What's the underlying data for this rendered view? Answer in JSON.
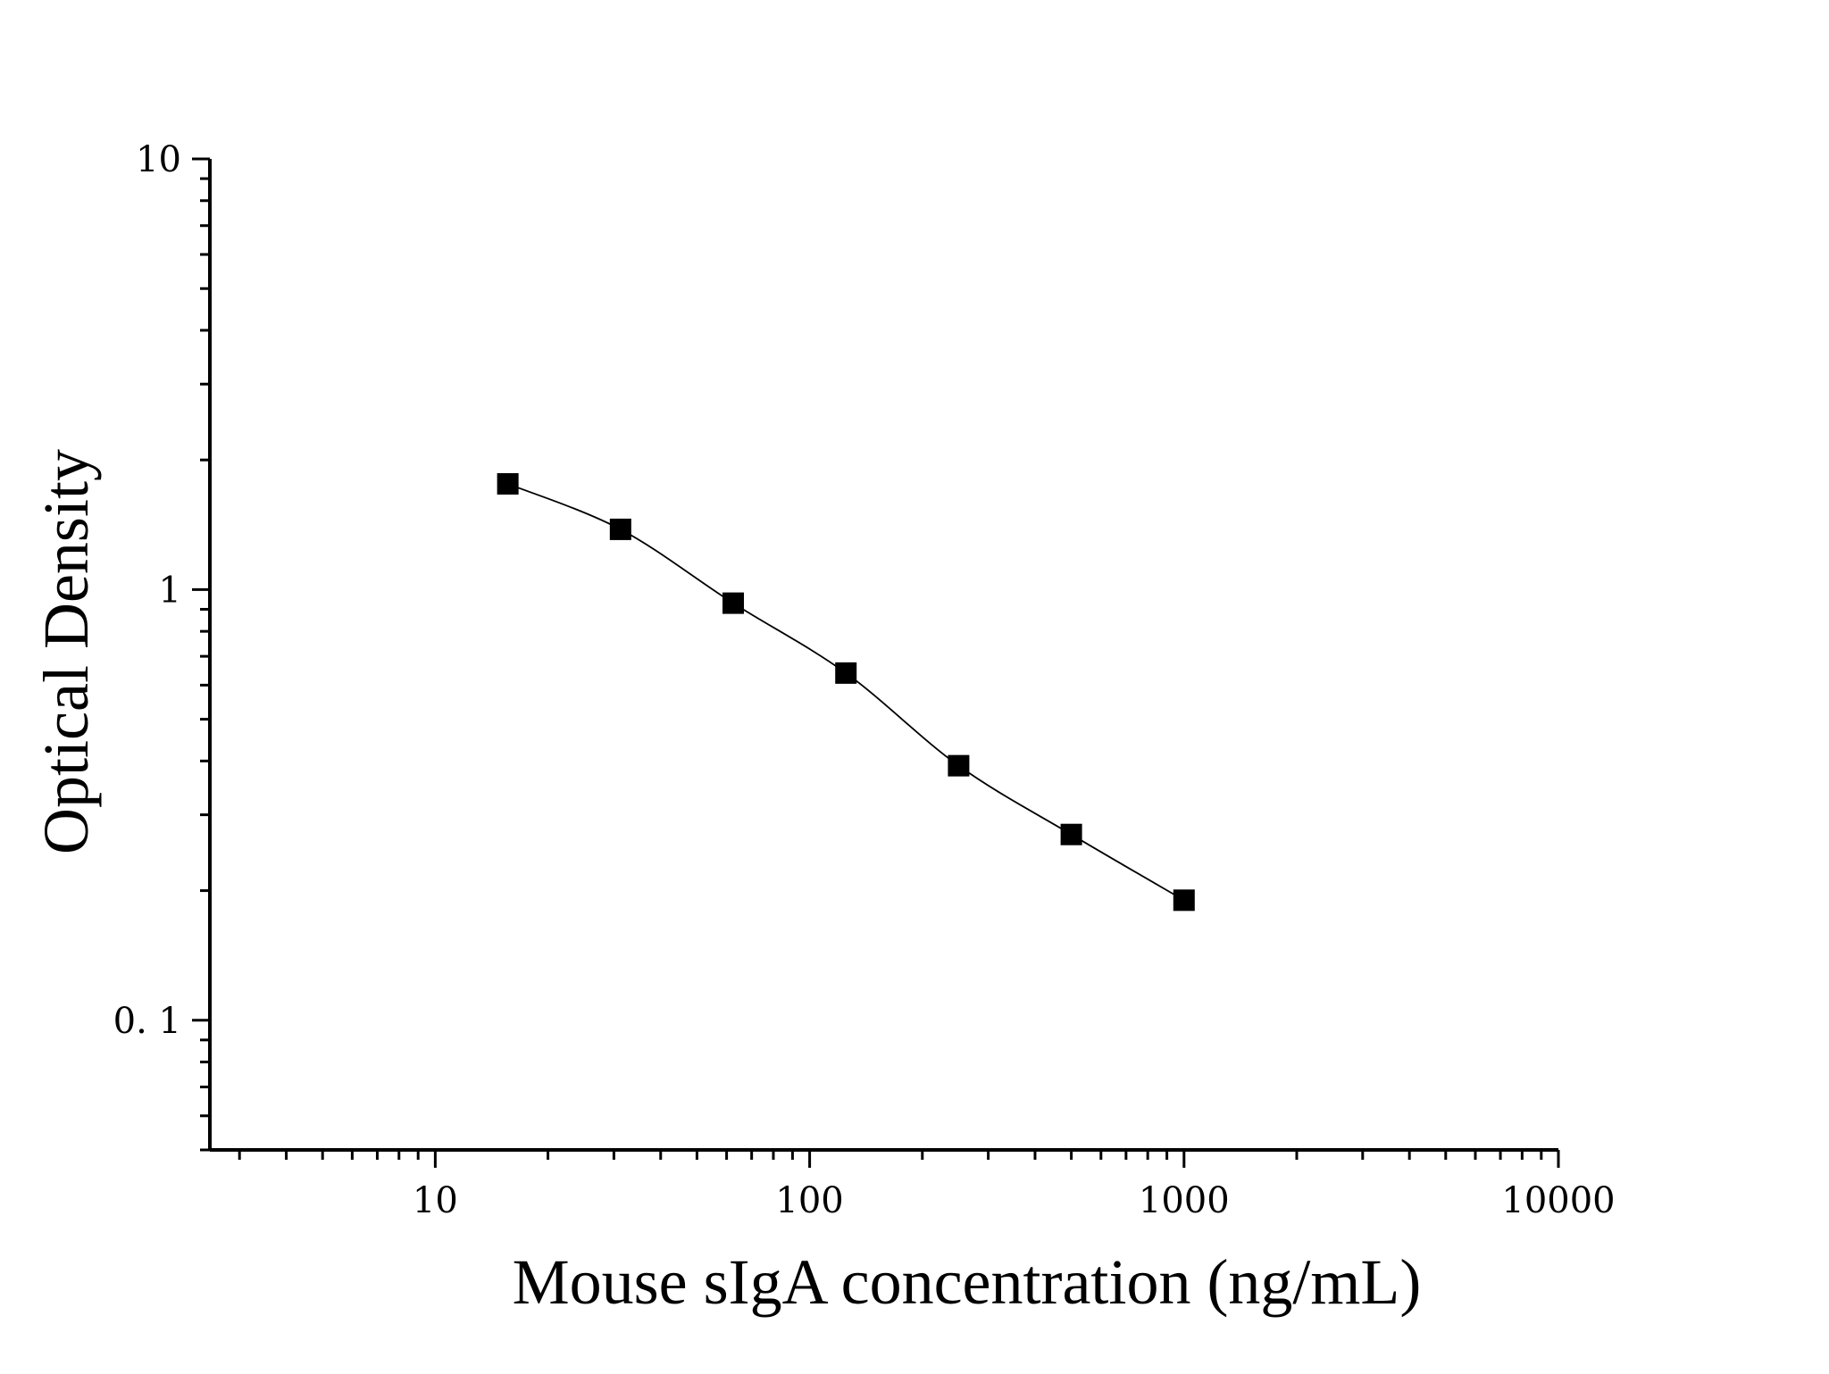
{
  "chart_data": {
    "type": "scatter",
    "title": "",
    "xlabel": "Mouse sIgA concentration (ng/mL)",
    "ylabel": "Optical Density",
    "x_scale": "log",
    "y_scale": "log",
    "xlim": [
      2.5,
      10000
    ],
    "ylim": [
      0.05,
      10
    ],
    "x_tick_labels": [
      "10",
      "100",
      "1000",
      "10000"
    ],
    "x_ticks": [
      10,
      100,
      1000,
      10000
    ],
    "y_tick_labels": [
      "0. 1",
      "1",
      "10"
    ],
    "y_ticks": [
      0.1,
      1,
      10
    ],
    "grid": false,
    "legend": "none",
    "marker": "square",
    "fit_line": true,
    "series": [
      {
        "x": [
          15.625,
          31.25,
          62.5,
          125,
          250,
          500,
          1000
        ],
        "y": [
          1.76,
          1.38,
          0.93,
          0.64,
          0.39,
          0.27,
          0.19
        ]
      }
    ]
  }
}
